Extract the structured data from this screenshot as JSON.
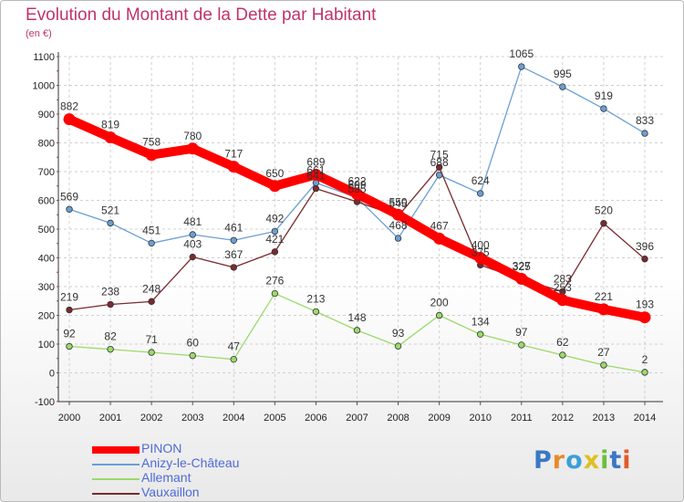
{
  "title": "Evolution du Montant de la Dette par Habitant",
  "unit": "(en €)",
  "chart_data": {
    "type": "line",
    "title": "Evolution du Montant de la Dette par Habitant",
    "ylabel": "(en €)",
    "x": [
      "2000",
      "2001",
      "2002",
      "2003",
      "2004",
      "2005",
      "2006",
      "2007",
      "2008",
      "2009",
      "2010",
      "2011",
      "2012",
      "2013",
      "2014"
    ],
    "yticks": [
      "-100",
      "0",
      "100",
      "200",
      "300",
      "400",
      "500",
      "600",
      "700",
      "800",
      "900",
      "1000",
      "1100"
    ],
    "ylim": [
      -100,
      1100
    ],
    "grid": true,
    "legend_position": "bottom-left",
    "series": [
      {
        "name": "PINON",
        "color": "#ff0000",
        "values": [
          882,
          819,
          758,
          780,
          717,
          650,
          689,
          622,
          550,
          467,
          400,
          327,
          253,
          221,
          193
        ],
        "labels": [
          "882",
          "819",
          "758",
          "780",
          "717",
          "650",
          "689",
          "622",
          "550",
          "467",
          "400",
          "327",
          "253",
          "221",
          "193"
        ]
      },
      {
        "name": "Anizy-le-Château",
        "color": "#6a9fd4",
        "values": [
          569,
          521,
          451,
          481,
          461,
          492,
          661,
          609,
          468,
          688,
          624,
          1065,
          995,
          919,
          833
        ],
        "labels": [
          "569",
          "521",
          "451",
          "481",
          "461",
          "492",
          "661",
          "609",
          "468",
          "688",
          "624",
          "1065",
          "995",
          "919",
          "833"
        ]
      },
      {
        "name": "Allemant",
        "color": "#9bd96b",
        "values": [
          92,
          82,
          71,
          60,
          47,
          276,
          213,
          148,
          93,
          200,
          134,
          97,
          62,
          27,
          2
        ],
        "labels": [
          "92",
          "82",
          "71",
          "60",
          "47",
          "276",
          "213",
          "148",
          "93",
          "200",
          "134",
          "97",
          "62",
          "27",
          "2"
        ]
      },
      {
        "name": "Vauxaillon",
        "color": "#7a2a2f",
        "values": [
          219,
          238,
          248,
          403,
          367,
          421,
          641,
          595,
          545,
          715,
          375,
          325,
          283,
          520,
          396
        ],
        "labels": [
          "219",
          "238",
          "248",
          "403",
          "367",
          "421",
          "641",
          "595",
          "545",
          "715",
          "375",
          "325",
          "283",
          "520",
          "396"
        ]
      }
    ]
  },
  "logo": {
    "p": "P",
    "r": "r",
    "o": "o",
    "x": "x",
    "i1": "i",
    "t": "t",
    "i2": "i"
  }
}
